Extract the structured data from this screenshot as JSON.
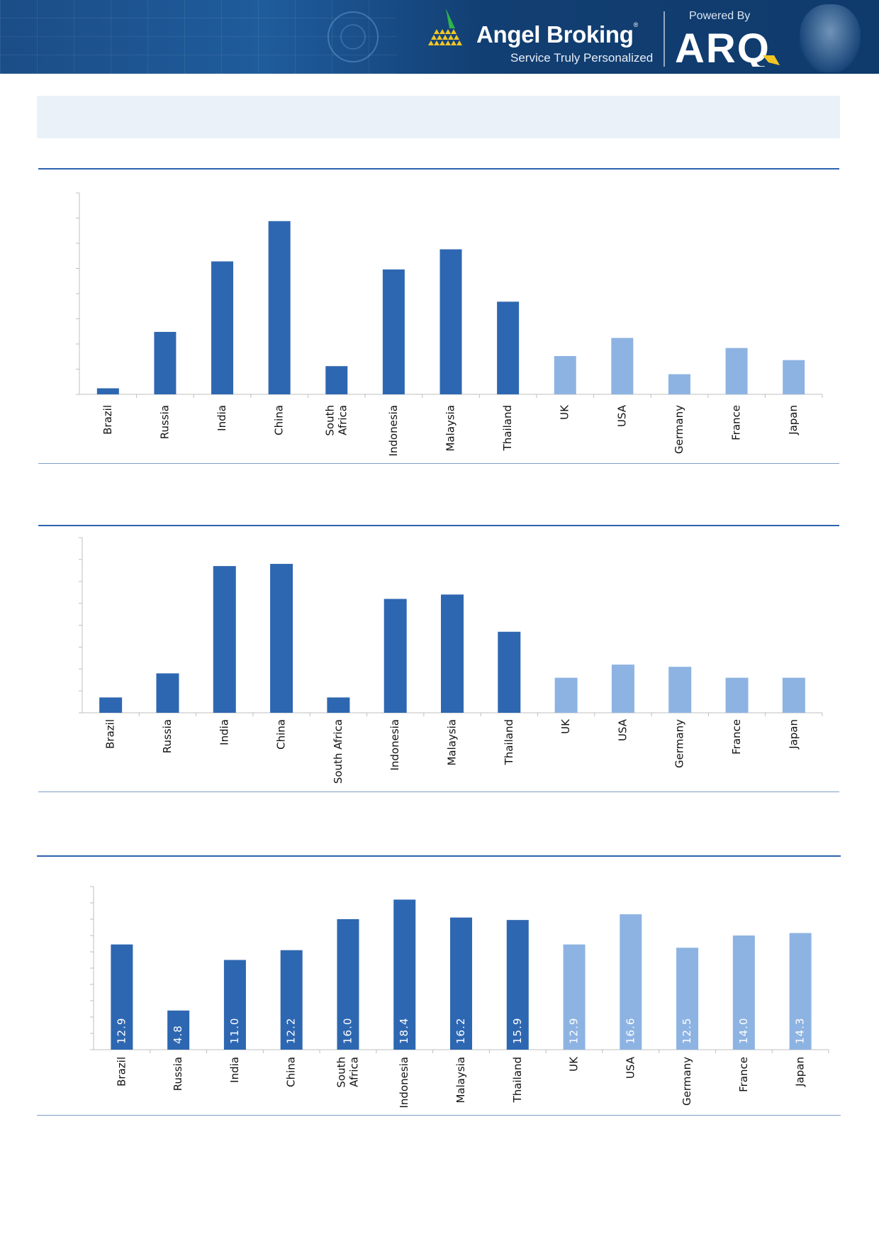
{
  "header": {
    "brand_name": "Angel Broking",
    "tagline": "Service Truly Personalized",
    "powered_by": "Powered By",
    "partner_logo_text": "ARQ",
    "registered_mark": "®"
  },
  "colors": {
    "emerging": "#2e67b1",
    "developed": "#8db3e2",
    "axis": "#bfbfbf",
    "rule": "#2e63ae",
    "header_box": "#eaf1f9"
  },
  "chart_data": [
    {
      "type": "bar",
      "categories": [
        "Brazil",
        "Russia",
        "India",
        "China",
        "South Africa",
        "Indonesia",
        "Malaysia",
        "Thailand",
        "UK",
        "USA",
        "Germany",
        "France",
        "Japan"
      ],
      "values": [
        0.3,
        3.1,
        6.6,
        8.6,
        1.4,
        6.2,
        7.2,
        4.6,
        1.9,
        2.8,
        1.0,
        2.3,
        1.7
      ],
      "ylim": [
        0,
        10
      ],
      "groups": [
        "emerging",
        "emerging",
        "emerging",
        "emerging",
        "emerging",
        "emerging",
        "emerging",
        "emerging",
        "developed",
        "developed",
        "developed",
        "developed",
        "developed"
      ],
      "data_labels": false
    },
    {
      "type": "bar",
      "categories": [
        "Brazil",
        "Russia",
        "India",
        "China",
        "South Africa",
        "Indonesia",
        "Malaysia",
        "Thailand",
        "UK",
        "USA",
        "Germany",
        "France",
        "Japan"
      ],
      "values": [
        0.7,
        1.8,
        6.7,
        6.8,
        0.7,
        5.2,
        5.4,
        3.7,
        1.6,
        2.2,
        2.1,
        1.6,
        1.6
      ],
      "ylim": [
        0,
        8
      ],
      "groups": [
        "emerging",
        "emerging",
        "emerging",
        "emerging",
        "emerging",
        "emerging",
        "emerging",
        "emerging",
        "developed",
        "developed",
        "developed",
        "developed",
        "developed"
      ],
      "data_labels": false
    },
    {
      "type": "bar",
      "categories": [
        "Brazil",
        "Russia",
        "India",
        "China",
        "South Africa",
        "Indonesia",
        "Malaysia",
        "Thailand",
        "UK",
        "USA",
        "Germany",
        "France",
        "Japan"
      ],
      "values": [
        12.9,
        4.8,
        11.0,
        12.2,
        16.0,
        18.4,
        16.2,
        15.9,
        12.9,
        16.6,
        12.5,
        14.0,
        14.3
      ],
      "value_labels": [
        "12.9",
        "4.8",
        "11.0",
        "12.2",
        "16.0",
        "18.4",
        "16.2",
        "15.9",
        "12.9",
        "16.6",
        "12.5",
        "14.0",
        "14.3"
      ],
      "ylim": [
        0,
        20
      ],
      "groups": [
        "emerging",
        "emerging",
        "emerging",
        "emerging",
        "emerging",
        "emerging",
        "emerging",
        "emerging",
        "developed",
        "developed",
        "developed",
        "developed",
        "developed"
      ],
      "data_labels": true
    }
  ]
}
